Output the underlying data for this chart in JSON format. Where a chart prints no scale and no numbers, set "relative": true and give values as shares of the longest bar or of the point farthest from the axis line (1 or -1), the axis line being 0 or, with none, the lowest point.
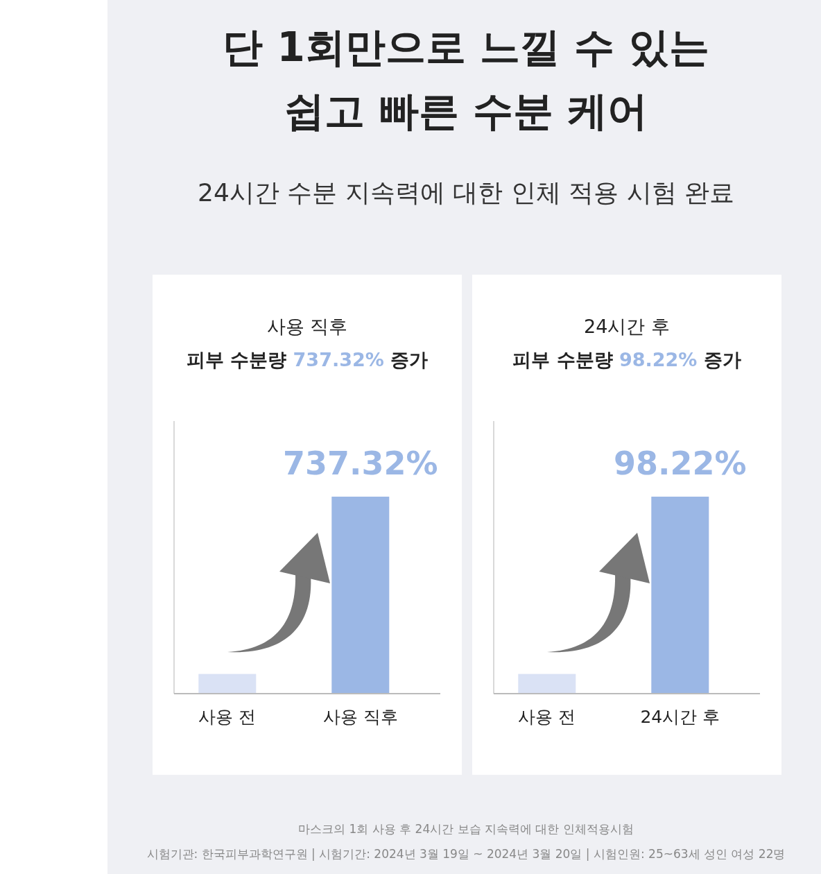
{
  "chart_data": [
    {
      "type": "other",
      "title": "단 1회만으로 느낄 수 있는\n쉽고 빠른 수분 케어",
      "subtitle": "24시간 수분 지속력에 대한 인체 적용 시험 완료",
      "annotations": [
        "마스크의 1회 사용 후 24시간 보습 지속력에 대한 인체적용시험",
        "시험기관: 한국피부과학연구원 | 시험기간: 2024년 3월 19일 ~ 2024년 3월 20일 | 시험인원: 25~63세 성인 여성 22명"
      ]
    },
    {
      "type": "bar",
      "title": "사용 직후",
      "subtitle": "피부 수분량 737.32% 증가",
      "categories": [
        "사용 전",
        "사용 직후"
      ],
      "values": [
        0.1,
        1
      ],
      "colors": [
        "#dae2f5",
        "#9bb7e5"
      ],
      "relative": true,
      "annotations": [
        {
          "text": "737.32%",
          "x": "사용 직후",
          "y": 1
        }
      ],
      "grid": false
    },
    {
      "type": "bar",
      "title": "24시간 후",
      "subtitle": "피부 수분량 98.22% 증가",
      "categories": [
        "사용 전",
        "24시간 후"
      ],
      "values": [
        0.1,
        1
      ],
      "colors": [
        "#dae2f5",
        "#9bb7e5"
      ],
      "relative": true,
      "annotations": [
        {
          "text": "98.22%",
          "x": "24시간 후",
          "y": 1
        }
      ],
      "grid": false
    }
  ]
}
